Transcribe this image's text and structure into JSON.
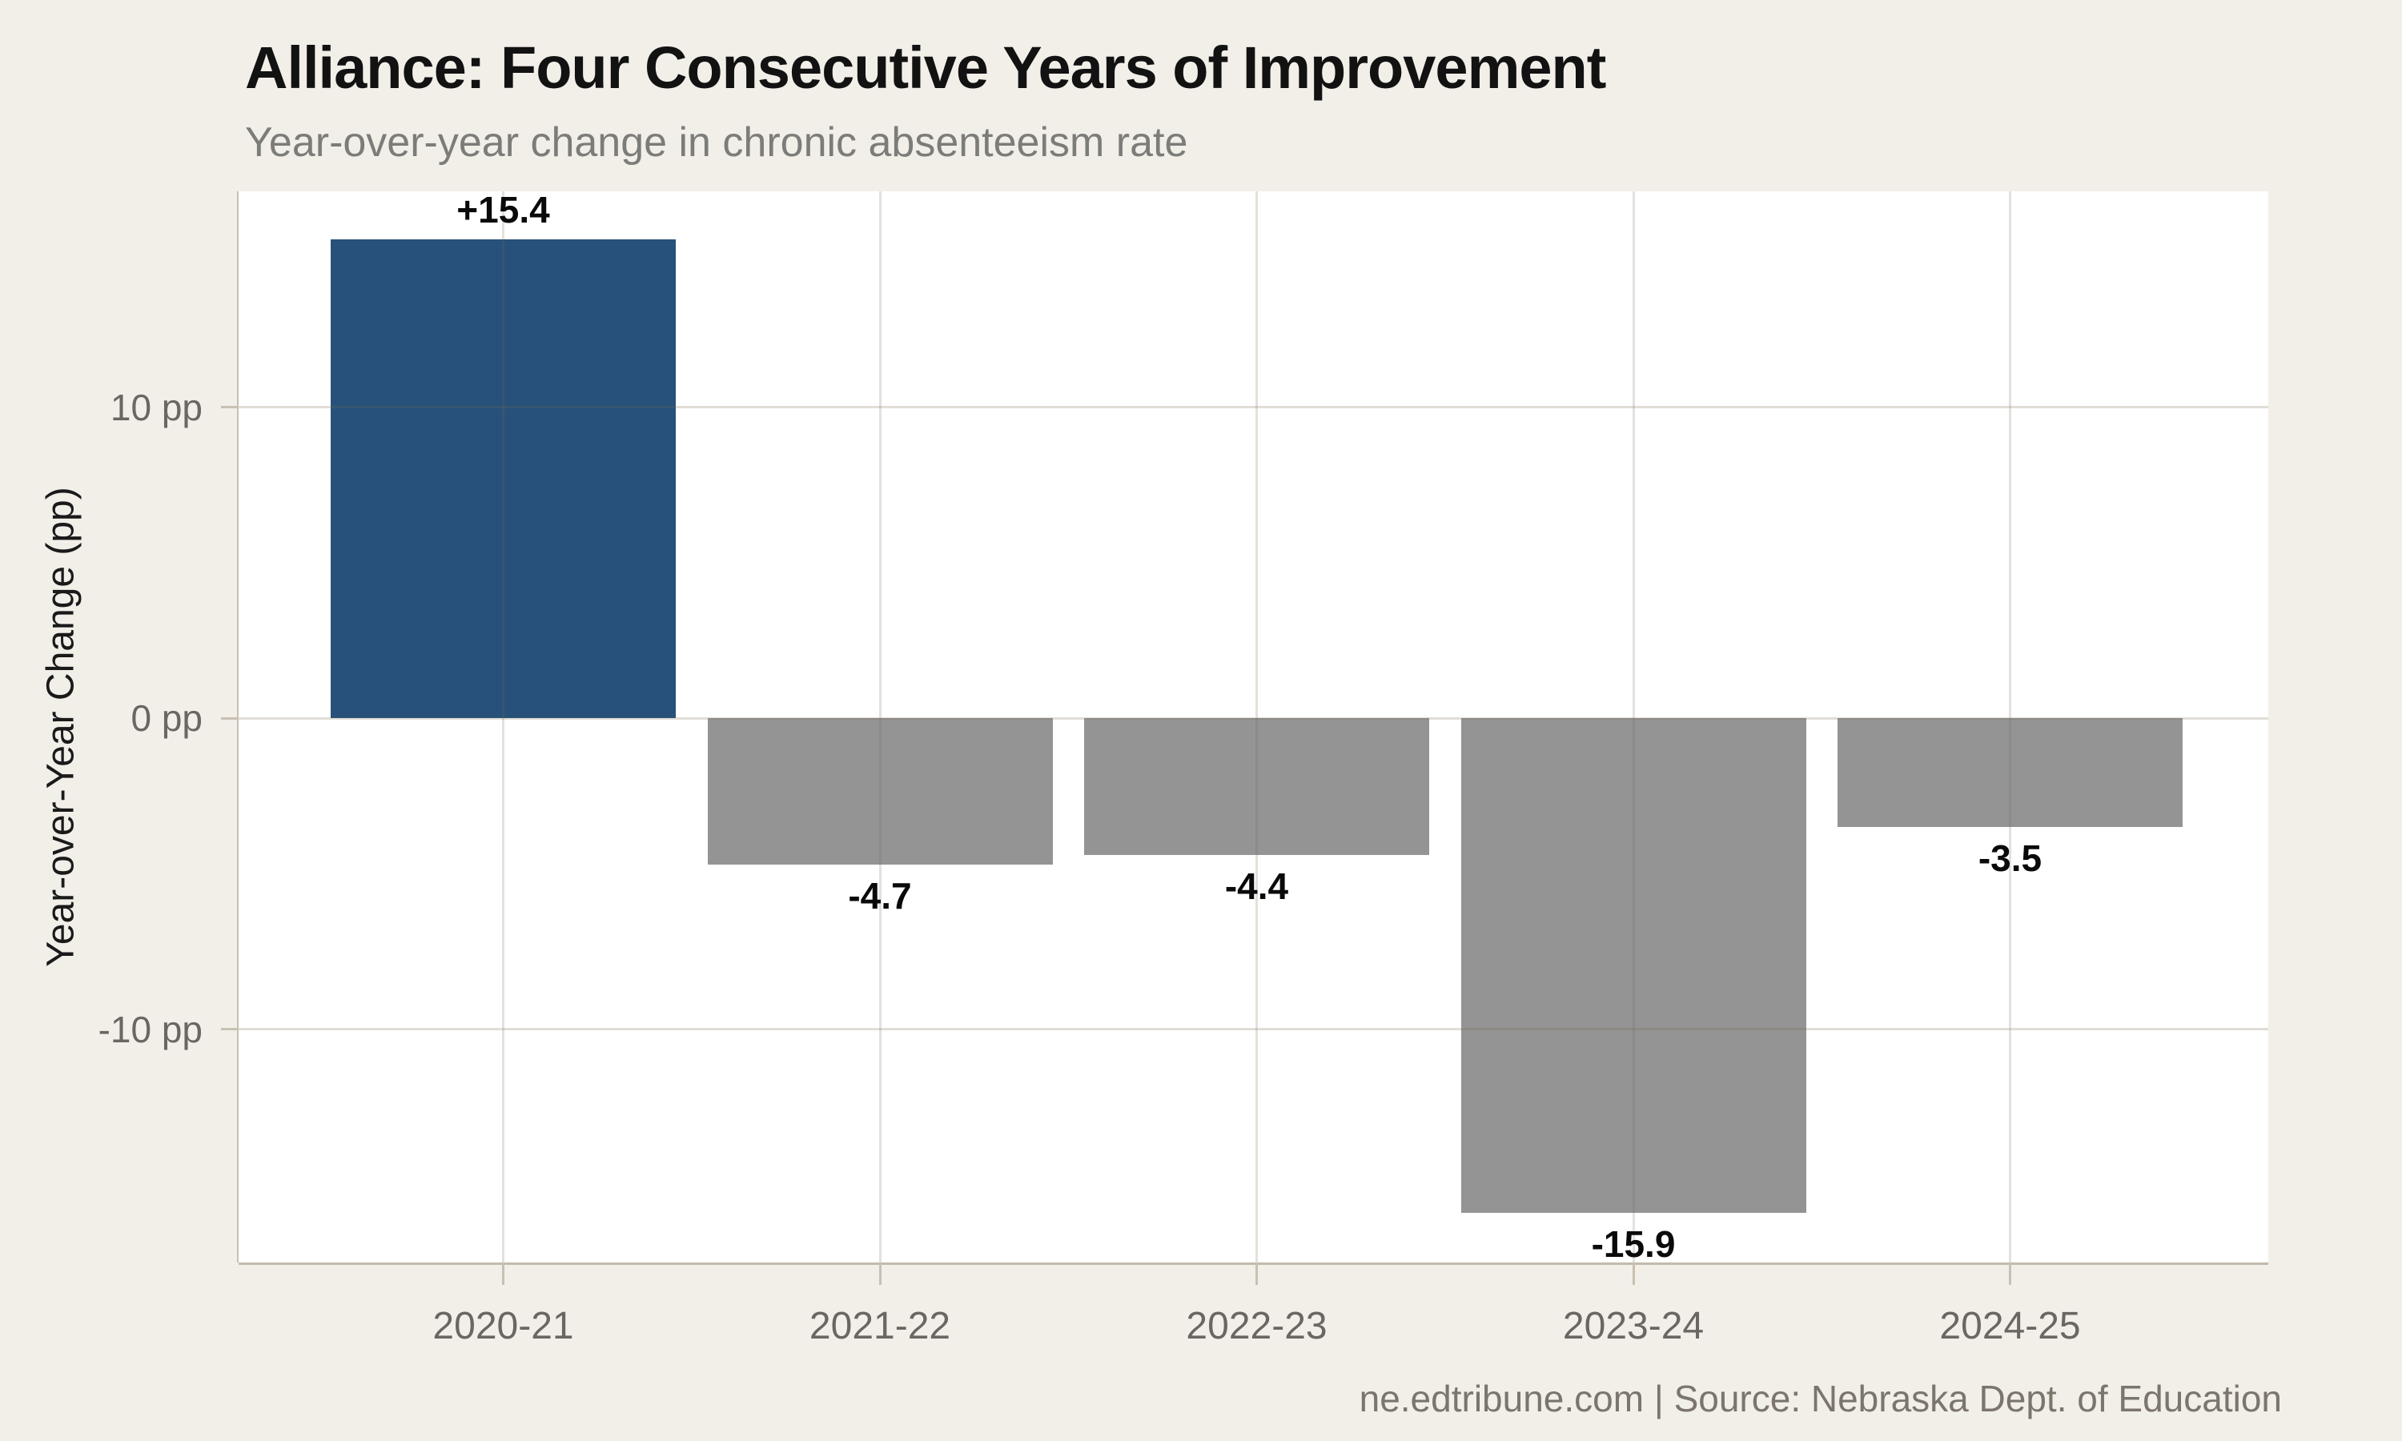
{
  "title": "Alliance: Four Consecutive Years of Improvement",
  "subtitle": "Year-over-year change in chronic absenteeism rate",
  "y_axis_title": "Year-over-Year Change (pp)",
  "footer": "ne.edtribune.com | Source: Nebraska Dept. of Education",
  "colors": {
    "background": "#f2efe9",
    "plot_background": "#ffffff",
    "positive_bar": "#27517a",
    "negative_bar": "#949494",
    "grid": "rgba(120,104,78,0.22)",
    "axis": "#c8c0b2",
    "tick_label": "#6b6661",
    "value_label": "#0a0a0a"
  },
  "chart_data": {
    "type": "bar",
    "title": "Alliance: Four Consecutive Years of Improvement",
    "subtitle": "Year-over-year change in chronic absenteeism rate",
    "categories": [
      "2020-21",
      "2021-22",
      "2022-23",
      "2023-24",
      "2024-25"
    ],
    "values": [
      15.4,
      -4.7,
      -4.4,
      -15.9,
      -3.5
    ],
    "bar_labels": [
      "+15.4",
      "-4.7",
      "-4.4",
      "-15.9",
      "-3.5"
    ],
    "bar_colors": [
      "#27517a",
      "#949494",
      "#949494",
      "#949494",
      "#949494"
    ],
    "xlabel": "",
    "ylabel": "Year-over-Year Change (pp)",
    "ylim": [
      -17.49,
      16.94
    ],
    "yticks": [
      {
        "value": 10,
        "label": "10 pp"
      },
      {
        "value": 0,
        "label": "0 pp"
      },
      {
        "value": -10,
        "label": "-10 pp"
      }
    ],
    "grid": "on",
    "legend": "none",
    "source": "ne.edtribune.com | Source: Nebraska Dept. of Education"
  }
}
